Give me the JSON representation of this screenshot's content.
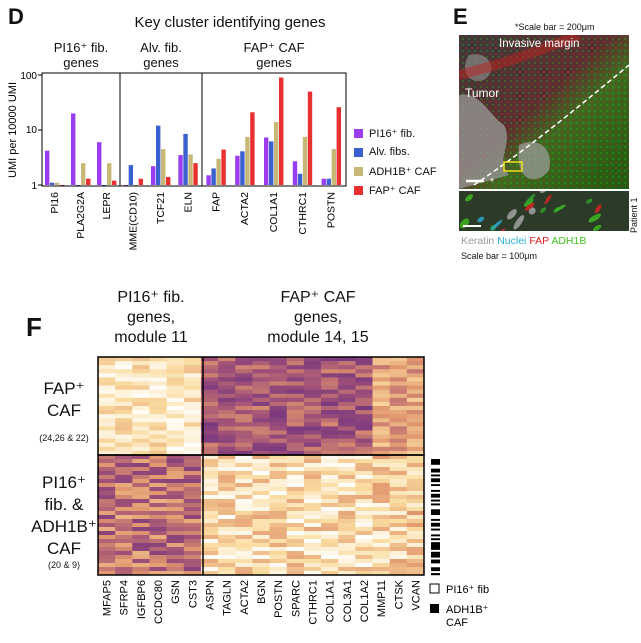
{
  "panel_d": {
    "letter": "D",
    "title": "Key cluster identifying genes",
    "groups": [
      {
        "line1": "PI16⁺ fib.",
        "line2": "genes"
      },
      {
        "line1": "Alv. fib.",
        "line2": "genes"
      },
      {
        "line1": "FAP⁺ CAF",
        "line2": "genes"
      }
    ],
    "ylabel": "UMI per 10000 UMI",
    "yticks": [
      "100",
      "10",
      "1"
    ]
  },
  "chart_data": {
    "type": "bar",
    "title": "Key cluster identifying genes",
    "ylabel": "UMI per 10000 UMI",
    "yscale": "log",
    "ylim": [
      1,
      100
    ],
    "categories": [
      "PI16",
      "PLA2G2A",
      "LEPR",
      "MME(CD10)",
      "TCF21",
      "ELN",
      "FAP",
      "ACTA2",
      "COL1A1",
      "CTHRC1",
      "POSTN"
    ],
    "series": [
      {
        "name": "PI16⁺ fib.",
        "color": "#9b3cf0",
        "values": [
          4.2,
          20,
          6,
          1.0,
          2.2,
          3.5,
          1.5,
          3.4,
          7.3,
          2.7,
          1.3
        ]
      },
      {
        "name": "Alv. fibs.",
        "color": "#3a5fd0",
        "values": [
          1.1,
          1.0,
          1.0,
          2.3,
          12,
          8.5,
          2.0,
          4.1,
          6.2,
          1.6,
          1.3
        ]
      },
      {
        "name": "ADH1B⁺ CAF",
        "color": "#c8b878",
        "values": [
          1.1,
          2.5,
          2.5,
          1.0,
          4.5,
          3.6,
          3.0,
          7.5,
          14,
          7.5,
          4.5
        ]
      },
      {
        "name": "FAP⁺ CAF",
        "color": "#e83030",
        "values": [
          1.0,
          1.3,
          1.2,
          1.3,
          1.4,
          2.5,
          4.4,
          21,
          90,
          50,
          26
        ]
      }
    ],
    "legend_position": "right"
  },
  "panel_e": {
    "letter": "E",
    "scale_top": "*Scale bar = 200μm",
    "label_margin": "Invasive margin",
    "label_tumor": "Tumor",
    "star": "*",
    "patient": "Patient 1",
    "legend_keratin": "Keratin",
    "legend_nuclei": "Nuclei",
    "legend_fap": "FAP",
    "legend_adh1b": "ADH1B",
    "scale_bottom": "Scale bar = 100μm"
  },
  "panel_f": {
    "letter": "F",
    "col_head_left": [
      "PI16⁺ fib.",
      "genes,",
      "module 11"
    ],
    "col_head_right": [
      "FAP⁺ CAF",
      "genes,",
      "module 14, 15"
    ],
    "row_top": [
      "FAP⁺",
      "CAF"
    ],
    "row_top_sub": "(24,26 & 22)",
    "row_bottom": [
      "PI16⁺",
      "fib. &",
      "ADH1B⁺",
      "CAF"
    ],
    "row_bottom_sub": "(20 & 9)",
    "genes": [
      "MFAP5",
      "SFRP4",
      "IGFBP6",
      "CCDC80",
      "GSN",
      "CST3",
      "ASPN",
      "TAGLN",
      "ACTA2",
      "BGN",
      "POSTN",
      "SPARC",
      "CTHRC1",
      "COL1A1",
      "COL3A1",
      "COL1A2",
      "MMP11",
      "CTSK",
      "VCAN"
    ],
    "legend_pi16": "PI16⁺ fib",
    "legend_adh1b_1": "ADH1B⁺",
    "legend_adh1b_2": "CAF"
  }
}
